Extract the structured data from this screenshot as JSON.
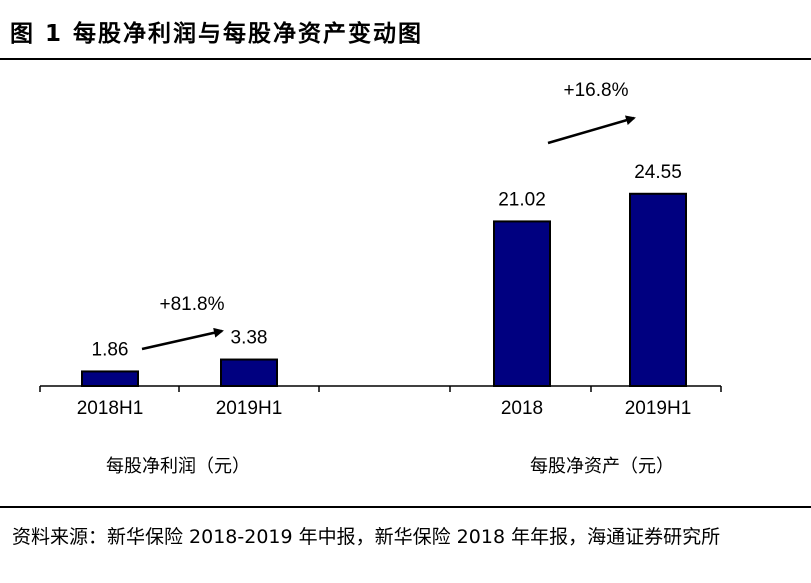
{
  "title": "图 1 每股净利润与每股净资产变动图",
  "source": "资料来源：新华保险 2018-2019 年中报，新华保险 2018 年年报，海通证券研究所",
  "colors": {
    "bar": "#000080",
    "bar_outline": "#000000",
    "arrow": "#000000"
  },
  "chart_data": [
    {
      "type": "bar",
      "group_label": "每股净利润（元）",
      "categories": [
        "2018H1",
        "2019H1"
      ],
      "values": [
        1.86,
        3.38
      ],
      "data_labels": [
        "1.86",
        "3.38"
      ],
      "change_annotation": "+81.8%"
    },
    {
      "type": "bar",
      "group_label": "每股净资产（元）",
      "categories": [
        "2018",
        "2019H1"
      ],
      "values": [
        21.02,
        24.55
      ],
      "data_labels": [
        "21.02",
        "24.55"
      ],
      "change_annotation": "+16.8%"
    }
  ]
}
